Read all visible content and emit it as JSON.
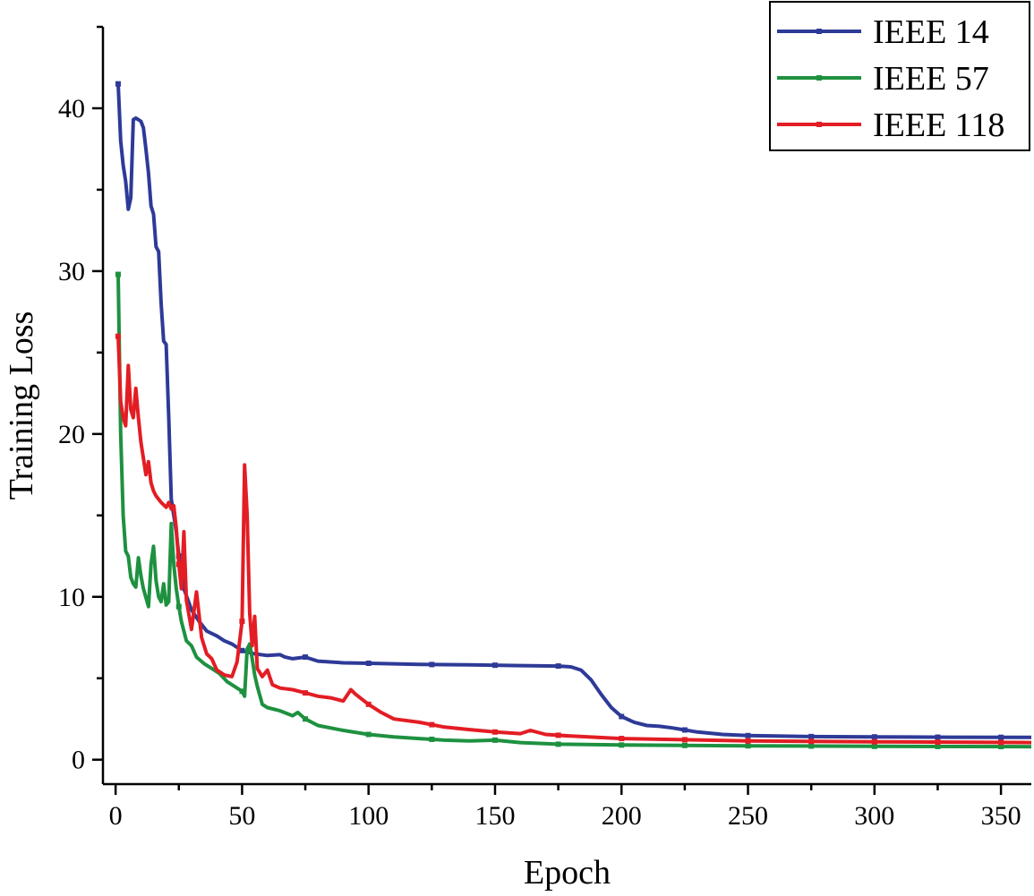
{
  "chart_data": {
    "type": "line",
    "title": "",
    "xlabel": "Epoch",
    "ylabel": "Training Loss",
    "xlim": [
      -5,
      362
    ],
    "ylim": [
      -1.5,
      45
    ],
    "xticks": [
      0,
      50,
      100,
      150,
      200,
      250,
      300,
      350
    ],
    "yticks": [
      0,
      10,
      20,
      30,
      40
    ],
    "x_minor_step": 25,
    "y_minor_step": 5,
    "grid": false,
    "legend_position": "top-right",
    "series": [
      {
        "name": "IEEE 14",
        "color": "#2e3a97",
        "points": [
          [
            1,
            41.5
          ],
          [
            2,
            38
          ],
          [
            3,
            36.5
          ],
          [
            4,
            35.5
          ],
          [
            5,
            33.8
          ],
          [
            6,
            34.5
          ],
          [
            7,
            39.3
          ],
          [
            8,
            39.4
          ],
          [
            9,
            39.3
          ],
          [
            10,
            39.2
          ],
          [
            11,
            38.8
          ],
          [
            12,
            37.5
          ],
          [
            13,
            36
          ],
          [
            14,
            34
          ],
          [
            15,
            33.5
          ],
          [
            16,
            31.5
          ],
          [
            17,
            31.2
          ],
          [
            18,
            28
          ],
          [
            19,
            25.7
          ],
          [
            20,
            25.5
          ],
          [
            21,
            21
          ],
          [
            22,
            16
          ],
          [
            23,
            15
          ],
          [
            24,
            14
          ],
          [
            25,
            12.5
          ],
          [
            27,
            10.5
          ],
          [
            30,
            9.2
          ],
          [
            33,
            8.5
          ],
          [
            36,
            7.9
          ],
          [
            40,
            7.6
          ],
          [
            43,
            7.3
          ],
          [
            46,
            7.1
          ],
          [
            50,
            6.7
          ],
          [
            55,
            6.5
          ],
          [
            60,
            6.4
          ],
          [
            65,
            6.45
          ],
          [
            67,
            6.3
          ],
          [
            70,
            6.2
          ],
          [
            75,
            6.3
          ],
          [
            80,
            6.05
          ],
          [
            90,
            5.95
          ],
          [
            100,
            5.92
          ],
          [
            120,
            5.85
          ],
          [
            140,
            5.82
          ],
          [
            160,
            5.78
          ],
          [
            175,
            5.75
          ],
          [
            180,
            5.7
          ],
          [
            184,
            5.5
          ],
          [
            188,
            4.9
          ],
          [
            192,
            4.0
          ],
          [
            196,
            3.2
          ],
          [
            200,
            2.65
          ],
          [
            205,
            2.3
          ],
          [
            210,
            2.1
          ],
          [
            215,
            2.05
          ],
          [
            220,
            1.95
          ],
          [
            230,
            1.7
          ],
          [
            240,
            1.55
          ],
          [
            250,
            1.48
          ],
          [
            275,
            1.42
          ],
          [
            300,
            1.4
          ],
          [
            330,
            1.38
          ],
          [
            362,
            1.37
          ]
        ]
      },
      {
        "name": "IEEE 57",
        "color": "#1e9140",
        "points": [
          [
            1,
            29.8
          ],
          [
            2,
            20
          ],
          [
            3,
            15
          ],
          [
            4,
            12.8
          ],
          [
            5,
            12.5
          ],
          [
            6,
            11.2
          ],
          [
            7,
            10.8
          ],
          [
            8,
            10.6
          ],
          [
            9,
            12.4
          ],
          [
            10,
            11.3
          ],
          [
            11,
            10.5
          ],
          [
            13,
            9.4
          ],
          [
            14,
            12
          ],
          [
            15,
            13.1
          ],
          [
            16,
            11
          ],
          [
            17,
            10
          ],
          [
            18,
            9.7
          ],
          [
            19,
            10.8
          ],
          [
            20,
            9.5
          ],
          [
            21,
            9.7
          ],
          [
            22,
            14.5
          ],
          [
            23,
            12
          ],
          [
            24,
            10.5
          ],
          [
            25,
            9.4
          ],
          [
            26,
            8.5
          ],
          [
            28,
            7.3
          ],
          [
            30,
            7
          ],
          [
            32,
            6.3
          ],
          [
            35,
            5.9
          ],
          [
            38,
            5.6
          ],
          [
            41,
            5.3
          ],
          [
            44,
            4.8
          ],
          [
            47,
            4.5
          ],
          [
            50,
            4.2
          ],
          [
            51,
            3.9
          ],
          [
            52,
            6.8
          ],
          [
            53,
            7.1
          ],
          [
            54,
            6.2
          ],
          [
            55,
            5.2
          ],
          [
            56,
            4.5
          ],
          [
            58,
            3.4
          ],
          [
            60,
            3.2
          ],
          [
            65,
            3.0
          ],
          [
            70,
            2.7
          ],
          [
            72,
            2.9
          ],
          [
            75,
            2.5
          ],
          [
            80,
            2.1
          ],
          [
            90,
            1.8
          ],
          [
            100,
            1.55
          ],
          [
            110,
            1.4
          ],
          [
            120,
            1.3
          ],
          [
            130,
            1.2
          ],
          [
            140,
            1.15
          ],
          [
            150,
            1.2
          ],
          [
            160,
            1.05
          ],
          [
            175,
            0.95
          ],
          [
            200,
            0.9
          ],
          [
            250,
            0.85
          ],
          [
            300,
            0.82
          ],
          [
            362,
            0.8
          ]
        ]
      },
      {
        "name": "IEEE 118",
        "color": "#e31d24",
        "points": [
          [
            1,
            26
          ],
          [
            2,
            22
          ],
          [
            3,
            21
          ],
          [
            4,
            20.5
          ],
          [
            5,
            24.2
          ],
          [
            6,
            21.5
          ],
          [
            7,
            21
          ],
          [
            8,
            22.8
          ],
          [
            9,
            21
          ],
          [
            10,
            19.5
          ],
          [
            11,
            18.5
          ],
          [
            12,
            17.5
          ],
          [
            13,
            18.3
          ],
          [
            14,
            17
          ],
          [
            15,
            16.5
          ],
          [
            16,
            16.2
          ],
          [
            18,
            15.8
          ],
          [
            20,
            15.5
          ],
          [
            21,
            15.8
          ],
          [
            22,
            15.4
          ],
          [
            23,
            15.6
          ],
          [
            24,
            14.2
          ],
          [
            25,
            12
          ],
          [
            26,
            10.5
          ],
          [
            27,
            14
          ],
          [
            28,
            9.8
          ],
          [
            30,
            8
          ],
          [
            32,
            10.3
          ],
          [
            34,
            7.5
          ],
          [
            36,
            6.5
          ],
          [
            38,
            6.2
          ],
          [
            40,
            5.5
          ],
          [
            43,
            5.2
          ],
          [
            46,
            5.1
          ],
          [
            48,
            6
          ],
          [
            50,
            8.5
          ],
          [
            51,
            18.1
          ],
          [
            52,
            15
          ],
          [
            53,
            9
          ],
          [
            54,
            7
          ],
          [
            55,
            8.8
          ],
          [
            56,
            5.6
          ],
          [
            58,
            5.1
          ],
          [
            60,
            5.5
          ],
          [
            62,
            4.6
          ],
          [
            65,
            4.4
          ],
          [
            70,
            4.3
          ],
          [
            75,
            4.1
          ],
          [
            80,
            3.9
          ],
          [
            85,
            3.8
          ],
          [
            90,
            3.6
          ],
          [
            93,
            4.3
          ],
          [
            95,
            4.0
          ],
          [
            100,
            3.4
          ],
          [
            105,
            2.9
          ],
          [
            110,
            2.5
          ],
          [
            120,
            2.3
          ],
          [
            130,
            2.0
          ],
          [
            140,
            1.85
          ],
          [
            150,
            1.7
          ],
          [
            160,
            1.6
          ],
          [
            164,
            1.8
          ],
          [
            170,
            1.55
          ],
          [
            180,
            1.45
          ],
          [
            200,
            1.3
          ],
          [
            250,
            1.15
          ],
          [
            300,
            1.1
          ],
          [
            362,
            1.05
          ]
        ]
      }
    ]
  }
}
